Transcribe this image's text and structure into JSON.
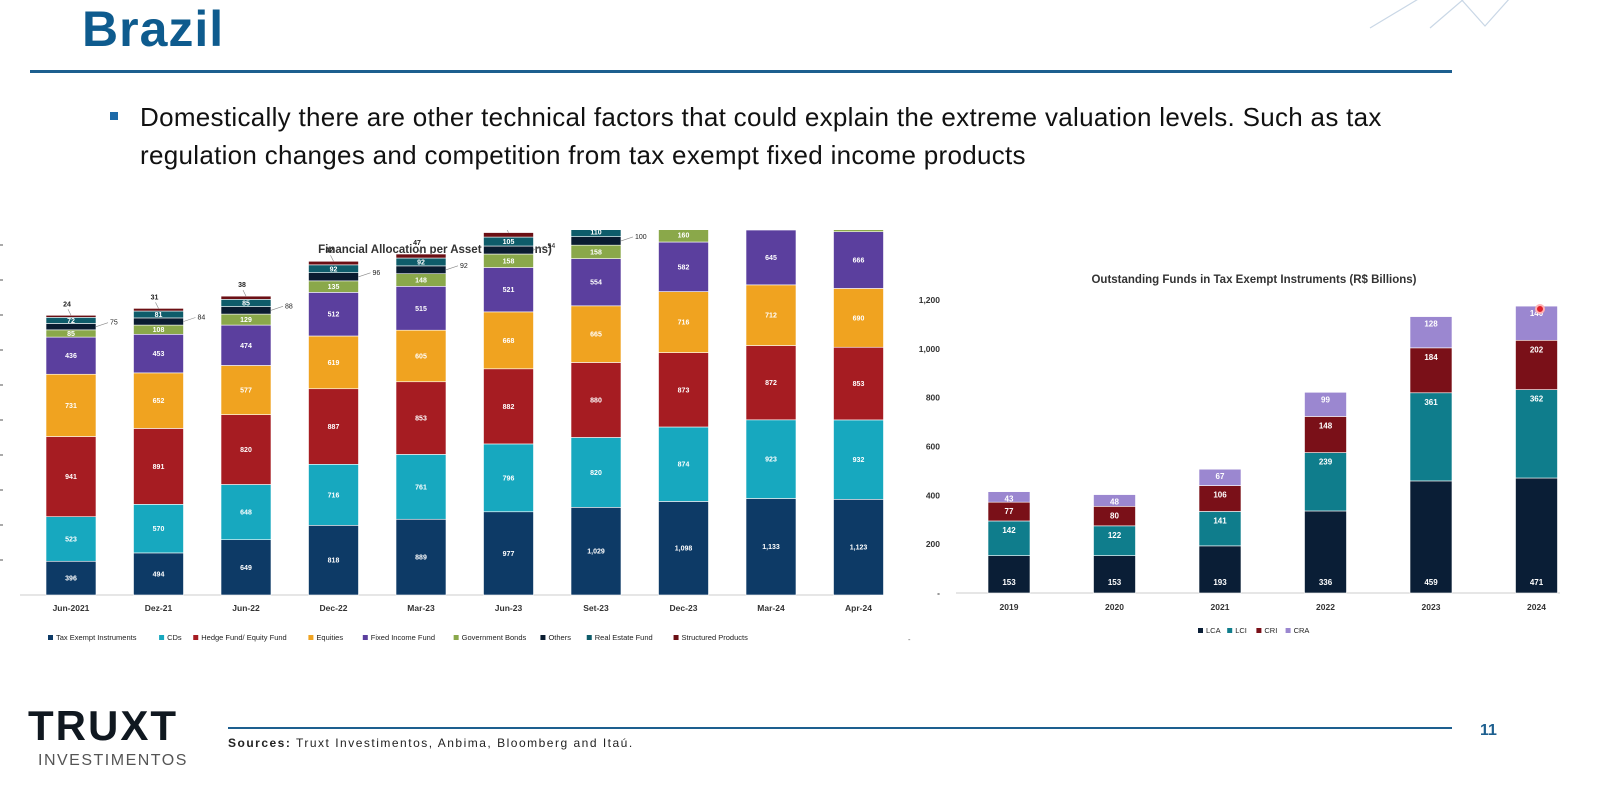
{
  "slide": {
    "title": "Brazil",
    "bullet": "Domestically there are other technical factors that could explain the extreme valuation levels. Such as tax regulation changes and competition from tax exempt fixed income products",
    "sources_label": "Sources:",
    "sources_text": "Truxt Investimentos, Anbima, Bloomberg and Itaú.",
    "page_number": "11",
    "logo_main": "TRUXT",
    "logo_sub": "INVESTIMENTOS"
  },
  "chart_data": [
    {
      "type": "bar",
      "stacked": true,
      "title": "Financial Allocation per Asset (R$ Billions)",
      "categories": [
        "Jun-2021",
        "Dez-21",
        "Jun-22",
        "Dec-22",
        "Mar-23",
        "Jun-23",
        "Set-23",
        "Dec-23",
        "Mar-24",
        "Apr-24"
      ],
      "series": [
        {
          "name": "Tax Exempt Instruments",
          "color": "#0d3a66",
          "values": [
            396,
            494,
            649,
            818,
            889,
            977,
            1029,
            1098,
            1133,
            1123
          ],
          "labels": [
            "396",
            "494",
            "649",
            "818",
            "889",
            "977",
            "1,029",
            "1,098",
            "1,133",
            "1,123"
          ]
        },
        {
          "name": "CDs",
          "color": "#17a8bf",
          "values": [
            523,
            570,
            648,
            716,
            761,
            796,
            820,
            874,
            923,
            932
          ],
          "labels": [
            "523",
            "570",
            "648",
            "716",
            "761",
            "796",
            "820",
            "874",
            "923",
            "932"
          ]
        },
        {
          "name": "Hedge Fund/ Equity Fund",
          "color": "#a61c22",
          "values": [
            941,
            891,
            820,
            887,
            853,
            882,
            880,
            873,
            872,
            853
          ],
          "labels": [
            "941",
            "891",
            "820",
            "887",
            "853",
            "882",
            "880",
            "873",
            "872",
            "853"
          ]
        },
        {
          "name": "Equities",
          "color": "#f0a320",
          "values": [
            731,
            652,
            577,
            619,
            605,
            668,
            665,
            716,
            712,
            690
          ],
          "labels": [
            "731",
            "652",
            "577",
            "619",
            "605",
            "668",
            "665",
            "716",
            "712",
            "690"
          ]
        },
        {
          "name": "Fixed Income Fund",
          "color": "#5b3f9e",
          "values": [
            436,
            453,
            474,
            512,
            515,
            521,
            554,
            582,
            645,
            666
          ],
          "labels": [
            "436",
            "453",
            "474",
            "512",
            "515",
            "521",
            "554",
            "582",
            "645",
            "666"
          ]
        },
        {
          "name": "Government Bonds",
          "color": "#8aa84a",
          "values": [
            85,
            108,
            129,
            135,
            148,
            158,
            158,
            160,
            163,
            166
          ],
          "labels": [
            "85",
            "108",
            "129",
            "135",
            "148",
            "158",
            "158",
            "160",
            "163",
            "166"
          ]
        },
        {
          "name": "Others",
          "color": "#0a1c30",
          "values": [
            75,
            84,
            88,
            96,
            92,
            94,
            100,
            100,
            130,
            133
          ],
          "labels": [
            "75",
            "84",
            "88",
            "96",
            "92",
            "94",
            "100",
            "100",
            "130",
            "133"
          ]
        },
        {
          "name": "Real Estate Fund",
          "color": "#0e5c6a",
          "values": [
            72,
            81,
            85,
            92,
            92,
            105,
            110,
            102,
            106,
            110
          ],
          "labels": [
            "72",
            "81",
            "85",
            "92",
            "92",
            "105",
            "110",
            "102",
            "106",
            "110"
          ]
        },
        {
          "name": "Structured Products",
          "color": "#6b0f14",
          "values": [
            24,
            31,
            38,
            42,
            47,
            53,
            56,
            57,
            65,
            66
          ],
          "labels": [
            "24",
            "31",
            "38",
            "42",
            "47",
            "53",
            "56",
            "57",
            "65",
            "66"
          ]
        }
      ],
      "legend_position": "bottom",
      "grid": false,
      "extra_legend_mark": "-"
    },
    {
      "type": "bar",
      "stacked": true,
      "title": "Outstanding Funds in Tax Exempt Instruments (R$ Billions)",
      "categories": [
        "2019",
        "2020",
        "2021",
        "2022",
        "2023",
        "2024"
      ],
      "ylim": [
        0,
        1200
      ],
      "yticks": [
        "-",
        "200",
        "400",
        "600",
        "800",
        "1,000",
        "1,200"
      ],
      "series": [
        {
          "name": "LCA",
          "color": "#0a1e36",
          "values": [
            153,
            153,
            193,
            336,
            459,
            471
          ]
        },
        {
          "name": "LCI",
          "color": "#0f7d8c",
          "values": [
            142,
            122,
            141,
            239,
            361,
            362
          ]
        },
        {
          "name": "CRI",
          "color": "#7a1018",
          "values": [
            77,
            80,
            106,
            148,
            184,
            202
          ]
        },
        {
          "name": "CRA",
          "color": "#9b87d0",
          "values": [
            43,
            48,
            67,
            99,
            128,
            140
          ]
        }
      ],
      "legend_position": "bottom",
      "grid": false
    }
  ]
}
